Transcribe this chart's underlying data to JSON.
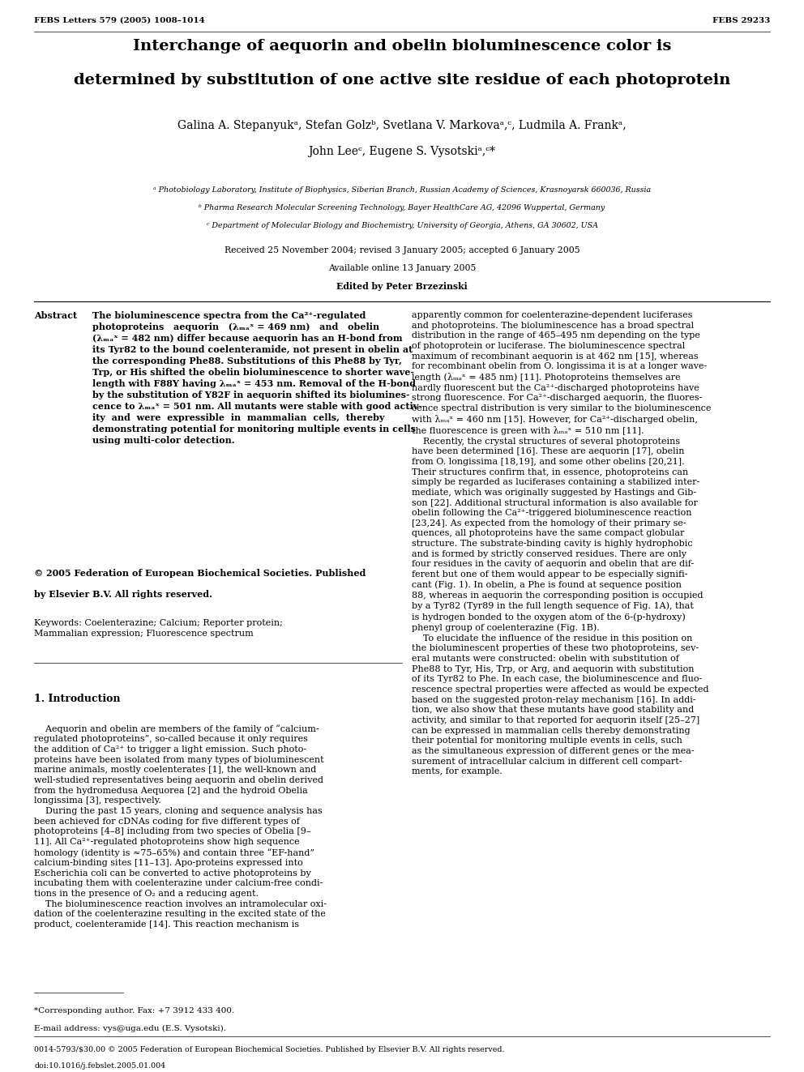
{
  "page_header_left": "FEBS Letters 579 (2005) 1008–1014",
  "page_header_right": "FEBS 29233",
  "title_line1": "Interchange of aequorin and obelin bioluminescence color is",
  "title_line2": "determined by substitution of one active site residue of each photoprotein",
  "authors_line1": "Galina A. Stepanyukᵃ, Stefan Golzᵇ, Svetlana V. Markovaᵃ,ᶜ, Ludmila A. Frankᵃ,",
  "authors_line2": "John Leeᶜ, Eugene S. Vysotskiᵃ,ᶜ*",
  "affil_a": "ᵃ Photobiology Laboratory, Institute of Biophysics, Siberian Branch, Russian Academy of Sciences, Krasnoyarsk 660036, Russia",
  "affil_b": "ᵇ Pharma Research Molecular Screening Technology, Bayer HealthCare AG, 42096 Wuppertal, Germany",
  "affil_c": "ᶜ Department of Molecular Biology and Biochemistry, University of Georgia, Athens, GA 30602, USA",
  "received": "Received 25 November 2004; revised 3 January 2005; accepted 6 January 2005",
  "available": "Available online 13 January 2005",
  "edited": "Edited by Peter Brzezinski",
  "abstract_label": "Abstract",
  "abstract_body_line1": "The bioluminescence spectra from the Ca²⁺-regulated",
  "abstract_body_line2": "photoproteins   aequorin   (λₘₐˣ = 469 nm)   and   obelin",
  "abstract_body_line3": "(λₘₐˣ = 482 nm) differ because aequorin has an H-bond from",
  "abstract_body_line4": "its Tyr82 to the bound coelenteramide, not present in obelin at",
  "abstract_body_line5": "the corresponding Phe88. Substitutions of this Phe88 by Tyr,",
  "abstract_body_line6": "Trp, or His shifted the obelin bioluminescence to shorter wave-",
  "abstract_body_line7": "length with F88Y having λₘₐˣ = 453 nm. Removal of the H-bond",
  "abstract_body_line8": "by the substitution of Y82F in aequorin shifted its biolumines-",
  "abstract_body_line9": "cence to λₘₐˣ = 501 nm. All mutants were stable with good activ-",
  "abstract_body_line10": "ity  and  were  expressible  in  mammalian  cells,  thereby",
  "abstract_body_line11": "demonstrating potential for monitoring multiple events in cells",
  "abstract_body_line12": "using multi-color detection.",
  "abstract_copy1": "© 2005 Federation of European Biochemical Societies. Published",
  "abstract_copy2": "by Elsevier B.V. All rights reserved.",
  "keywords_label": "Keywords:",
  "keywords_line1": "Coelenterazine; Calcium; Reporter protein;",
  "keywords_line2": "Mammalian expression; Fluorescence spectrum",
  "section1_title": "1. Introduction",
  "footnote_star": "*Corresponding author. Fax: +7 3912 433 400.",
  "footnote_email": "E-mail address: vys@uga.edu (E.S. Vysotski).",
  "footer_line1": "0014-5793/$30.00 © 2005 Federation of European Biochemical Societies. Published by Elsevier B.V. All rights reserved.",
  "footer_line2": "doi:10.1016/j.febslet.2005.01.004"
}
